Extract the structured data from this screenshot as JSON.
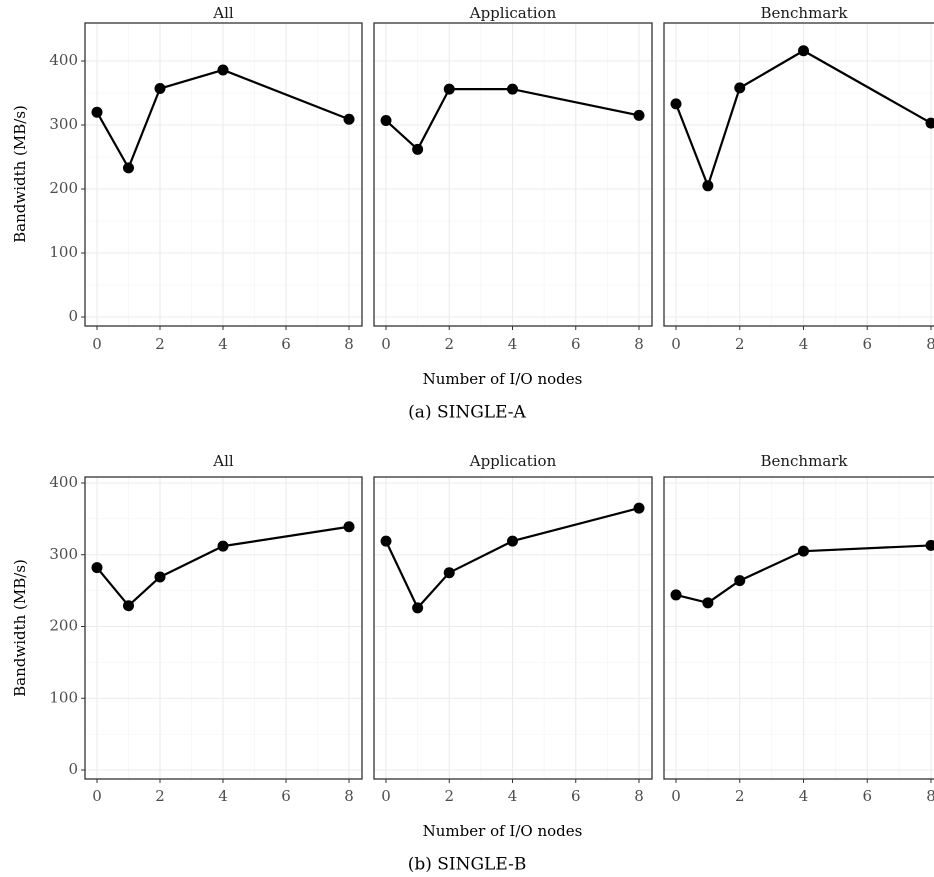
{
  "chart_data": [
    {
      "type": "line",
      "caption": "(a) SINGLE-A",
      "xlabel": "Number of I/O nodes",
      "ylabel": "Bandwidth (MB/s)",
      "xlim": [
        0,
        8
      ],
      "ylim": [
        0,
        450
      ],
      "xticks": [
        0,
        2,
        4,
        6,
        8
      ],
      "yticks": [
        0,
        100,
        200,
        300,
        400
      ],
      "grid": true,
      "facets": [
        {
          "title": "All",
          "x": [
            0,
            1,
            2,
            4,
            8
          ],
          "values": [
            320,
            233,
            357,
            386,
            309
          ]
        },
        {
          "title": "Application",
          "x": [
            0,
            1,
            2,
            4,
            8
          ],
          "values": [
            307,
            262,
            356,
            356,
            315
          ]
        },
        {
          "title": "Benchmark",
          "x": [
            0,
            1,
            2,
            4,
            8
          ],
          "values": [
            333,
            205,
            358,
            416,
            303
          ]
        }
      ]
    },
    {
      "type": "line",
      "caption": "(b) SINGLE-B",
      "xlabel": "Number of I/O nodes",
      "ylabel": "Bandwidth (MB/s)",
      "xlim": [
        0,
        8
      ],
      "ylim": [
        0,
        400
      ],
      "xticks": [
        0,
        2,
        4,
        6,
        8
      ],
      "yticks": [
        0,
        100,
        200,
        300,
        400
      ],
      "grid": true,
      "facets": [
        {
          "title": "All",
          "x": [
            0,
            1,
            2,
            4,
            8
          ],
          "values": [
            282,
            229,
            269,
            312,
            339
          ]
        },
        {
          "title": "Application",
          "x": [
            0,
            1,
            2,
            4,
            8
          ],
          "values": [
            319,
            226,
            275,
            319,
            365
          ]
        },
        {
          "title": "Benchmark",
          "x": [
            0,
            1,
            2,
            4,
            8
          ],
          "values": [
            244,
            233,
            264,
            305,
            313
          ]
        }
      ]
    }
  ]
}
